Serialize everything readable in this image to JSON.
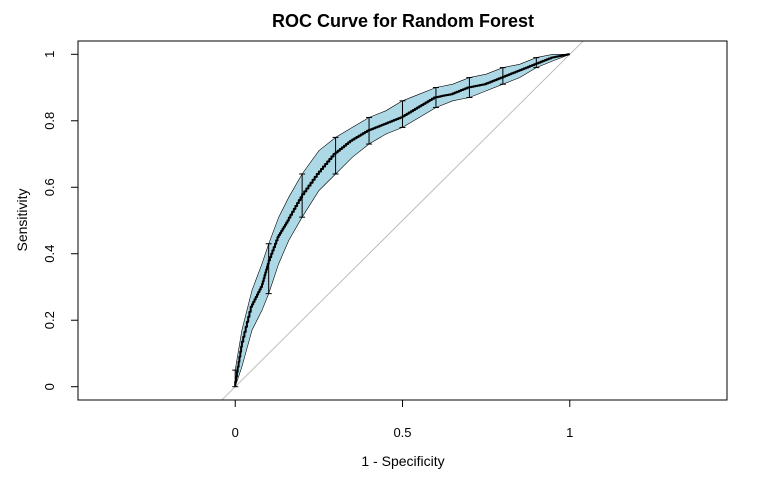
{
  "chart_data": {
    "type": "line",
    "title": "ROC Curve for Random Forest",
    "xlabel": "1 - Specificity",
    "ylabel": "Sensitivity",
    "xlim": [
      -0.47,
      1.47
    ],
    "ylim": [
      -0.04,
      1.04
    ],
    "x_ticks": [
      {
        "value": 0,
        "label": "0"
      },
      {
        "value": 0.5,
        "label": "0.5"
      },
      {
        "value": 1,
        "label": "1"
      }
    ],
    "y_ticks": [
      {
        "value": 0,
        "label": "0"
      },
      {
        "value": 0.2,
        "label": "0.2"
      },
      {
        "value": 0.4,
        "label": "0.4"
      },
      {
        "value": 0.6,
        "label": "0.6"
      },
      {
        "value": 0.8,
        "label": "0.8"
      },
      {
        "value": 1,
        "label": "1"
      }
    ],
    "grid": false,
    "series": [
      {
        "x": [
          0,
          0.02,
          0.05,
          0.08,
          0.1,
          0.13,
          0.16,
          0.2,
          0.25,
          0.3,
          0.35,
          0.4,
          0.45,
          0.5,
          0.55,
          0.6,
          0.65,
          0.7,
          0.75,
          0.8,
          0.85,
          0.9,
          0.95,
          1.0
        ],
        "y": [
          0,
          0.12,
          0.24,
          0.3,
          0.37,
          0.45,
          0.5,
          0.57,
          0.64,
          0.7,
          0.74,
          0.77,
          0.79,
          0.81,
          0.84,
          0.87,
          0.88,
          0.9,
          0.91,
          0.93,
          0.95,
          0.97,
          0.99,
          1.0
        ]
      }
    ],
    "confidence_band": {
      "x": [
        0,
        0.02,
        0.05,
        0.08,
        0.1,
        0.13,
        0.16,
        0.2,
        0.25,
        0.3,
        0.35,
        0.4,
        0.45,
        0.5,
        0.55,
        0.6,
        0.65,
        0.7,
        0.75,
        0.8,
        0.85,
        0.9,
        0.95,
        1.0
      ],
      "lower": [
        0,
        0.06,
        0.17,
        0.23,
        0.28,
        0.37,
        0.44,
        0.51,
        0.59,
        0.64,
        0.69,
        0.73,
        0.76,
        0.78,
        0.81,
        0.84,
        0.86,
        0.87,
        0.89,
        0.91,
        0.93,
        0.96,
        0.98,
        1.0
      ],
      "upper": [
        0.05,
        0.17,
        0.29,
        0.37,
        0.43,
        0.51,
        0.57,
        0.64,
        0.71,
        0.75,
        0.78,
        0.81,
        0.83,
        0.86,
        0.88,
        0.9,
        0.91,
        0.93,
        0.94,
        0.96,
        0.97,
        0.99,
        1.0,
        1.0
      ]
    },
    "error_bars": [
      {
        "x": 0,
        "lower": 0.0,
        "upper": 0.05
      },
      {
        "x": 0.1,
        "lower": 0.28,
        "upper": 0.43
      },
      {
        "x": 0.2,
        "lower": 0.51,
        "upper": 0.64
      },
      {
        "x": 0.3,
        "lower": 0.64,
        "upper": 0.75
      },
      {
        "x": 0.4,
        "lower": 0.73,
        "upper": 0.81
      },
      {
        "x": 0.5,
        "lower": 0.78,
        "upper": 0.86
      },
      {
        "x": 0.6,
        "lower": 0.84,
        "upper": 0.9
      },
      {
        "x": 0.7,
        "lower": 0.87,
        "upper": 0.93
      },
      {
        "x": 0.8,
        "lower": 0.91,
        "upper": 0.96
      },
      {
        "x": 0.9,
        "lower": 0.96,
        "upper": 0.99
      }
    ],
    "reference_line": {
      "from": [
        -0.04,
        -0.04
      ],
      "to": [
        1.04,
        1.04
      ]
    },
    "colors": {
      "band": "#add8e6",
      "curve": "#000000",
      "reference": "#bebebe"
    }
  }
}
